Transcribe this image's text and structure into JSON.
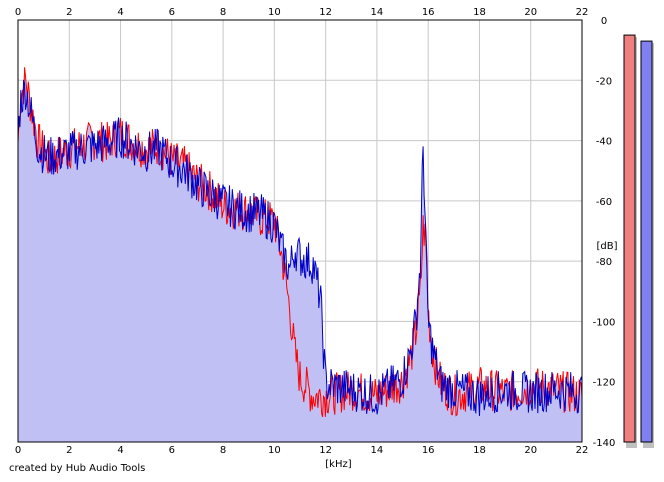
{
  "credit": "created by Hub Audio Tools",
  "chart_data": {
    "type": "line",
    "xlabel": "[kHz]",
    "ylabel": "[dB]",
    "xlim": [
      0,
      22
    ],
    "ylim": [
      -140,
      0
    ],
    "x_ticks": [
      0,
      2,
      4,
      6,
      8,
      10,
      12,
      14,
      16,
      18,
      20,
      22
    ],
    "y_ticks": [
      0,
      -20,
      -40,
      -60,
      -80,
      -100,
      -120,
      -140
    ],
    "grid": true,
    "colors": {
      "fill": "#c0c0f4",
      "left": "#ff0000",
      "right": "#0000c8",
      "grid": "#c8c8c8",
      "meter_left": "#f08080",
      "meter_right": "#8080f0"
    },
    "series": [
      {
        "color": "#ff0000",
        "x": [
          0,
          0.1,
          0.3,
          0.5,
          0.8,
          1.2,
          1.6,
          2,
          2.5,
          3,
          3.5,
          4,
          4.5,
          5,
          5.5,
          6,
          6.5,
          7,
          7.5,
          8,
          8.5,
          9,
          9.5,
          10,
          10.3,
          10.6,
          10.8,
          11,
          11.5,
          12,
          13,
          14,
          15,
          15.3,
          15.5,
          15.7,
          15.8,
          15.9,
          16,
          16.2,
          16.5,
          17,
          18,
          19,
          20,
          21,
          22
        ],
        "y": [
          -40,
          -25,
          -19,
          -28,
          -40,
          -46,
          -44,
          -42,
          -41,
          -39,
          -40,
          -37,
          -40,
          -42,
          -41,
          -46,
          -48,
          -53,
          -56,
          -61,
          -62,
          -63,
          -65,
          -66,
          -78,
          -95,
          -110,
          -118,
          -124,
          -124,
          -122,
          -124,
          -119,
          -112,
          -104,
          -90,
          -68,
          -72,
          -96,
          -111,
          -120,
          -124,
          -121,
          -123,
          -121,
          -122,
          -124
        ]
      },
      {
        "color": "#0000c8",
        "x": [
          0,
          0.1,
          0.3,
          0.5,
          0.8,
          1.2,
          1.6,
          2,
          2.5,
          3,
          3.5,
          4,
          4.5,
          5,
          5.5,
          6,
          6.5,
          7,
          7.5,
          8,
          8.5,
          9,
          9.5,
          10,
          10.3,
          10.6,
          10.8,
          11,
          11.5,
          11.8,
          12,
          13,
          14,
          15,
          15.3,
          15.5,
          15.7,
          15.8,
          15.9,
          16,
          16.2,
          16.5,
          17,
          18,
          19,
          20,
          21,
          22
        ],
        "y": [
          -38,
          -26,
          -22,
          -30,
          -42,
          -45,
          -44,
          -43,
          -42,
          -41,
          -40,
          -38,
          -41,
          -43,
          -42,
          -47,
          -49,
          -54,
          -57,
          -60,
          -62,
          -63,
          -64,
          -67,
          -76,
          -82,
          -75,
          -78,
          -80,
          -92,
          -120,
          -122,
          -124,
          -118,
          -110,
          -100,
          -80,
          -40,
          -70,
          -100,
          -110,
          -120,
          -122,
          -124,
          -122,
          -123,
          -122,
          -123
        ]
      }
    ],
    "level_meters": [
      {
        "channel": "left",
        "level_db": -5,
        "color": "#f08080"
      },
      {
        "channel": "right",
        "level_db": -7,
        "color": "#8080f0"
      }
    ]
  }
}
